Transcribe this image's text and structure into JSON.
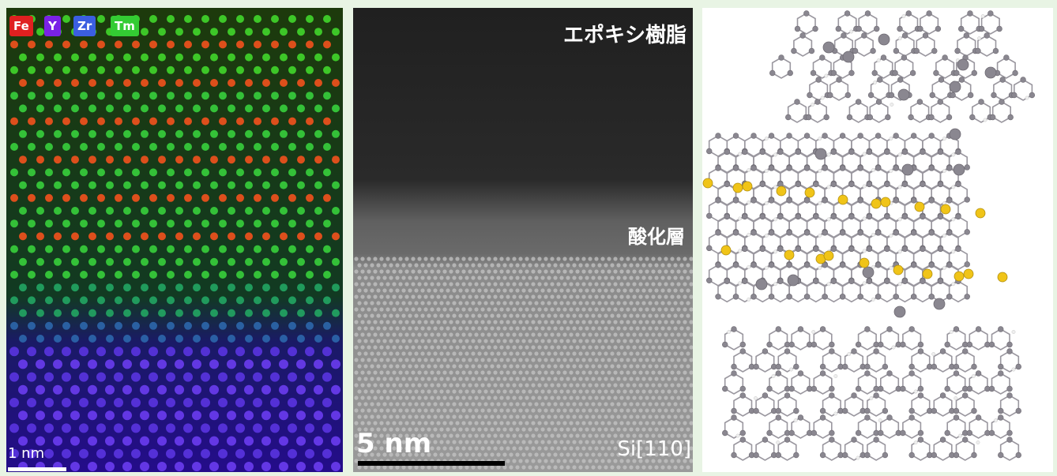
{
  "left_panel": {
    "legend": [
      {
        "label": "Fe",
        "color": "#e02020"
      },
      {
        "label": "Y",
        "color": "#7a22e6"
      },
      {
        "label": "Zr",
        "color": "#3b5ee0"
      },
      {
        "label": "Tm",
        "color": "#33cc33"
      }
    ],
    "scale_bar": "1 nm"
  },
  "middle_panel": {
    "label_top": "エポキシ樹脂",
    "label_mid": "酸化層",
    "label_bottom": "Si[110]",
    "scale_bar": "5 nm"
  },
  "right_panel": {
    "atom_colors": {
      "carbon": "#8a8790",
      "sulfur": "#f0c418",
      "hydrogen": "#eeeeee"
    }
  }
}
